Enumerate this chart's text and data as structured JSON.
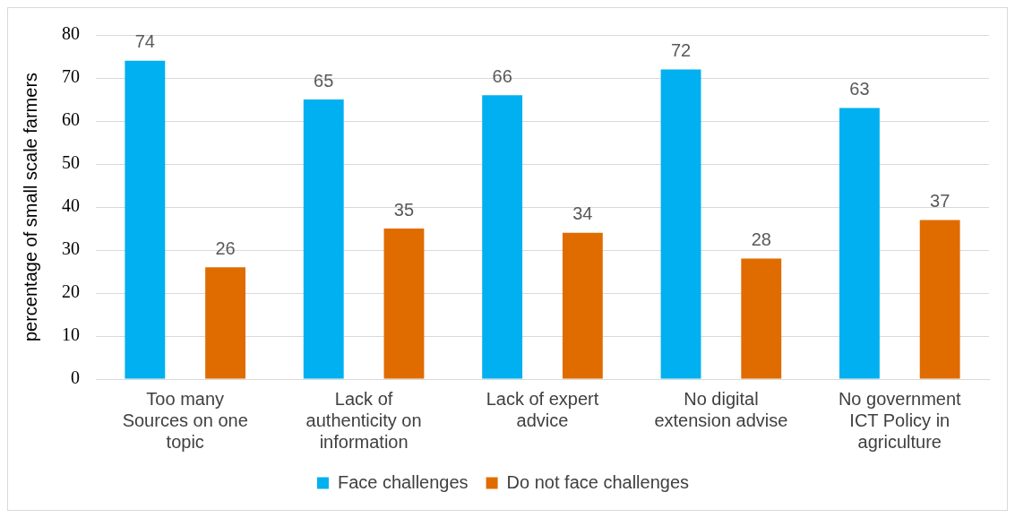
{
  "chart_data": {
    "type": "bar",
    "ylabel": "percentage of small scale farmers",
    "categories": [
      "Too many Sources on one topic",
      "Lack of authenticity on information",
      "Lack of expert advice",
      "No digital extension advise",
      "No government ICT Policy in agriculture"
    ],
    "series": [
      {
        "name": "Face challenges",
        "color": "#00b0f0",
        "values": [
          74,
          65,
          66,
          72,
          63
        ]
      },
      {
        "name": "Do not face challenges",
        "color": "#e06c00",
        "values": [
          26,
          35,
          34,
          28,
          37
        ]
      }
    ],
    "ylim": [
      0,
      80
    ],
    "yticks": [
      0,
      10,
      20,
      30,
      40,
      50,
      60,
      70,
      80
    ],
    "grid": "y",
    "legend": "bottom",
    "data_labels": true
  }
}
